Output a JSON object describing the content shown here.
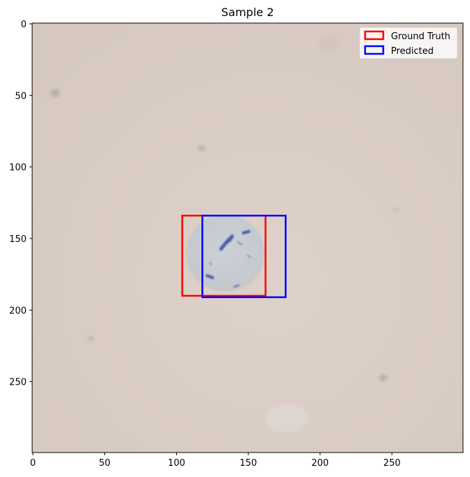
{
  "title": "Sample 2",
  "image": {
    "description_colors": {
      "background": "#d9cbc2",
      "cell": "#c9ccd0",
      "stain": "#3a4fa8"
    },
    "x_range": [
      0,
      299
    ],
    "y_range": [
      0,
      299
    ]
  },
  "axes": {
    "x_ticks": [
      0,
      50,
      100,
      150,
      200,
      250
    ],
    "y_ticks": [
      0,
      50,
      100,
      150,
      200,
      250
    ]
  },
  "boxes": [
    {
      "name": "Ground Truth",
      "color": "#ff0000",
      "x0": 104,
      "y0": 134,
      "x1": 162,
      "y1": 190
    },
    {
      "name": "Predicted",
      "color": "#0000ff",
      "x0": 118,
      "y0": 134,
      "x1": 176,
      "y1": 191
    }
  ],
  "legend": {
    "placement": "top-right",
    "entries": [
      "Ground Truth",
      "Predicted"
    ]
  }
}
